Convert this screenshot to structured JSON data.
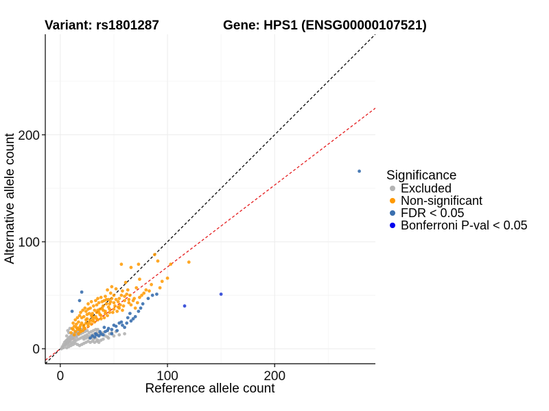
{
  "chart_data": {
    "type": "scatter",
    "title_variant": "Variant: rs1801287",
    "title_gene": "Gene: HPS1 (ENSG00000107521)",
    "xlabel": "Reference allele count",
    "ylabel": "Alternative allele count",
    "xlim": [
      -14,
      294
    ],
    "ylim": [
      -14,
      294
    ],
    "xticks": [
      0,
      100,
      200
    ],
    "yticks": [
      0,
      100,
      200
    ],
    "grid": true,
    "reference_lines": [
      {
        "name": "identity",
        "slope": 1.0,
        "intercept": 0,
        "color": "#000000"
      },
      {
        "name": "fitted",
        "slope": 0.765,
        "intercept": 0,
        "color": "#e41a1c"
      }
    ],
    "legend": {
      "title": "Significance",
      "position": "right",
      "items": [
        {
          "label": "Excluded",
          "color": "#b3b3b3"
        },
        {
          "label": "Non-significant",
          "color": "#ff9900"
        },
        {
          "label": "FDR < 0.05",
          "color": "#3a6fae"
        },
        {
          "label": "Bonferroni P-val < 0.05",
          "color": "#0000ee"
        }
      ]
    },
    "series": [
      {
        "name": "Bonferroni P-val < 0.05",
        "color": "#2b44d6",
        "points": [
          [
            116,
            40
          ],
          [
            150,
            51
          ]
        ]
      },
      {
        "name": "FDR < 0.05",
        "color": "#3a6fae",
        "points": [
          [
            279,
            166
          ],
          [
            90,
            51
          ],
          [
            86,
            50
          ],
          [
            77,
            42
          ],
          [
            73,
            35
          ],
          [
            70,
            30
          ],
          [
            66,
            26
          ],
          [
            62,
            24
          ],
          [
            58,
            22
          ],
          [
            55,
            24
          ],
          [
            52,
            21
          ],
          [
            48,
            18
          ],
          [
            45,
            19
          ],
          [
            42,
            16
          ],
          [
            40,
            13
          ],
          [
            38,
            14
          ],
          [
            36,
            12
          ],
          [
            34,
            13
          ],
          [
            32,
            11
          ],
          [
            30,
            12
          ],
          [
            28,
            10
          ],
          [
            48,
            14
          ],
          [
            53,
            17
          ],
          [
            60,
            20
          ],
          [
            65,
            33
          ],
          [
            63,
            29
          ],
          [
            57,
            25
          ],
          [
            20,
            53
          ],
          [
            18,
            45
          ],
          [
            11,
            35
          ],
          [
            82,
            47
          ],
          [
            75,
            38
          ],
          [
            68,
            28
          ],
          [
            44,
            17
          ],
          [
            41,
            20
          ],
          [
            37,
            16
          ],
          [
            33,
            14
          ],
          [
            50,
            22
          ]
        ]
      },
      {
        "name": "Non-significant",
        "color": "#ff9900",
        "points": [
          [
            120,
            81
          ],
          [
            103,
            79
          ],
          [
            91,
            82
          ],
          [
            88,
            88
          ],
          [
            73,
            79
          ],
          [
            57,
            79
          ],
          [
            66,
            76
          ],
          [
            95,
            63
          ],
          [
            74,
            65
          ],
          [
            61,
            62
          ],
          [
            48,
            58
          ],
          [
            52,
            56
          ],
          [
            44,
            55
          ],
          [
            47,
            52
          ],
          [
            50,
            50
          ],
          [
            42,
            49
          ],
          [
            38,
            48
          ],
          [
            35,
            47
          ],
          [
            33,
            45
          ],
          [
            29,
            44
          ],
          [
            26,
            42
          ],
          [
            58,
            54
          ],
          [
            62,
            51
          ],
          [
            64,
            46
          ],
          [
            68,
            45
          ],
          [
            72,
            43
          ],
          [
            54,
            44
          ],
          [
            56,
            41
          ],
          [
            51,
            40
          ],
          [
            46,
            42
          ],
          [
            40,
            40
          ],
          [
            37,
            37
          ],
          [
            35,
            36
          ],
          [
            32,
            36
          ],
          [
            30,
            33
          ],
          [
            27,
            33
          ],
          [
            25,
            32
          ],
          [
            22,
            30
          ],
          [
            20,
            29
          ],
          [
            17,
            25
          ],
          [
            15,
            23
          ],
          [
            13,
            21
          ],
          [
            11,
            19
          ],
          [
            12,
            24
          ],
          [
            14,
            27
          ],
          [
            16,
            29
          ],
          [
            18,
            31
          ],
          [
            19,
            34
          ],
          [
            21,
            36
          ],
          [
            23,
            38
          ],
          [
            24,
            35
          ],
          [
            26,
            37
          ],
          [
            28,
            38
          ],
          [
            31,
            40
          ],
          [
            34,
            41
          ],
          [
            36,
            43
          ],
          [
            39,
            44
          ],
          [
            41,
            45
          ],
          [
            43,
            46
          ],
          [
            45,
            46
          ],
          [
            48,
            47
          ],
          [
            60,
            45
          ],
          [
            66,
            41
          ],
          [
            70,
            38
          ],
          [
            58,
            36
          ],
          [
            53,
            35
          ],
          [
            49,
            34
          ],
          [
            44,
            31
          ],
          [
            41,
            29
          ],
          [
            38,
            28
          ],
          [
            35,
            27
          ],
          [
            32,
            25
          ],
          [
            29,
            23
          ],
          [
            26,
            21
          ],
          [
            23,
            19
          ],
          [
            21,
            17
          ],
          [
            19,
            16
          ],
          [
            17,
            14
          ],
          [
            24,
            24
          ],
          [
            28,
            27
          ],
          [
            33,
            30
          ],
          [
            37,
            32
          ],
          [
            42,
            35
          ],
          [
            46,
            37
          ],
          [
            55,
            38
          ],
          [
            31,
            28
          ],
          [
            27,
            25
          ],
          [
            22,
            22
          ],
          [
            18,
            20
          ],
          [
            16,
            18
          ],
          [
            14,
            16
          ],
          [
            20,
            24
          ],
          [
            25,
            28
          ],
          [
            30,
            30
          ],
          [
            36,
            34
          ],
          [
            40,
            36
          ],
          [
            45,
            39
          ],
          [
            50,
            43
          ],
          [
            55,
            47
          ],
          [
            60,
            49
          ],
          [
            65,
            50
          ],
          [
            76,
            50
          ],
          [
            80,
            55
          ],
          [
            85,
            60
          ],
          [
            71,
            57
          ],
          [
            63,
            55
          ],
          [
            57,
            50
          ],
          [
            52,
            46
          ],
          [
            47,
            44
          ],
          [
            43,
            42
          ],
          [
            39,
            38
          ],
          [
            34,
            34
          ],
          [
            29,
            31
          ],
          [
            24,
            27
          ],
          [
            19,
            22
          ],
          [
            15,
            20
          ],
          [
            12,
            18
          ],
          [
            10,
            15
          ],
          [
            13,
            13
          ],
          [
            18,
            18
          ],
          [
            22,
            20
          ],
          [
            26,
            23
          ],
          [
            30,
            26
          ],
          [
            34,
            28
          ],
          [
            38,
            31
          ],
          [
            42,
            33
          ],
          [
            46,
            34
          ],
          [
            50,
            37
          ],
          [
            54,
            39
          ],
          [
            59,
            40
          ],
          [
            64,
            43
          ],
          [
            69,
            47
          ],
          [
            74,
            48
          ],
          [
            78,
            52
          ],
          [
            83,
            54
          ],
          [
            93,
            57
          ],
          [
            100,
            66
          ]
        ]
      },
      {
        "name": "Excluded",
        "color": "#b3b3b3",
        "points": [
          [
            1,
            0
          ],
          [
            2,
            2
          ],
          [
            3,
            1
          ],
          [
            4,
            3
          ],
          [
            5,
            4
          ],
          [
            6,
            5
          ],
          [
            7,
            6
          ],
          [
            8,
            7
          ],
          [
            9,
            8
          ],
          [
            10,
            9
          ],
          [
            11,
            10
          ],
          [
            12,
            11
          ],
          [
            13,
            12
          ],
          [
            14,
            13
          ],
          [
            15,
            13
          ],
          [
            16,
            15
          ],
          [
            17,
            16
          ],
          [
            18,
            17
          ],
          [
            20,
            18
          ],
          [
            6,
            8
          ],
          [
            5,
            7
          ],
          [
            8,
            10
          ],
          [
            10,
            12
          ],
          [
            12,
            14
          ],
          [
            14,
            16
          ],
          [
            16,
            19
          ],
          [
            4,
            6
          ],
          [
            7,
            4
          ],
          [
            9,
            5
          ],
          [
            11,
            6
          ],
          [
            13,
            7
          ],
          [
            15,
            8
          ],
          [
            17,
            9
          ],
          [
            19,
            10
          ],
          [
            21,
            11
          ],
          [
            23,
            12
          ],
          [
            25,
            13
          ],
          [
            27,
            10
          ],
          [
            29,
            11
          ],
          [
            31,
            9
          ],
          [
            33,
            10
          ],
          [
            35,
            8
          ],
          [
            24,
            6
          ],
          [
            22,
            5
          ],
          [
            20,
            4
          ],
          [
            18,
            3
          ],
          [
            16,
            4
          ],
          [
            14,
            5
          ],
          [
            12,
            4
          ],
          [
            10,
            3
          ],
          [
            8,
            2
          ],
          [
            6,
            1
          ],
          [
            26,
            7
          ],
          [
            28,
            6
          ],
          [
            30,
            7
          ],
          [
            32,
            6
          ],
          [
            34,
            7
          ],
          [
            36,
            6
          ],
          [
            38,
            8
          ],
          [
            40,
            9
          ],
          [
            45,
            10
          ],
          [
            50,
            12
          ],
          [
            55,
            13
          ],
          [
            60,
            14
          ],
          [
            17,
            13
          ],
          [
            19,
            14
          ],
          [
            21,
            15
          ],
          [
            23,
            16
          ],
          [
            25,
            17
          ],
          [
            27,
            15
          ],
          [
            29,
            16
          ],
          [
            31,
            17
          ],
          [
            33,
            18
          ],
          [
            35,
            18
          ],
          [
            3,
            4
          ],
          [
            2,
            1
          ],
          [
            9,
            11
          ],
          [
            11,
            13
          ],
          [
            13,
            9
          ],
          [
            15,
            11
          ],
          [
            7,
            9
          ],
          [
            22,
            9
          ],
          [
            24,
            10
          ],
          [
            26,
            11
          ],
          [
            28,
            12
          ],
          [
            30,
            13
          ],
          [
            32,
            14
          ],
          [
            34,
            15
          ],
          [
            36,
            14
          ],
          [
            38,
            13
          ],
          [
            40,
            15
          ],
          [
            42,
            12
          ],
          [
            44,
            11
          ],
          [
            46,
            14
          ],
          [
            48,
            15
          ],
          [
            52,
            16
          ],
          [
            6,
            12
          ],
          [
            7,
            17
          ],
          [
            9,
            19
          ],
          [
            8,
            15
          ]
        ]
      }
    ]
  }
}
